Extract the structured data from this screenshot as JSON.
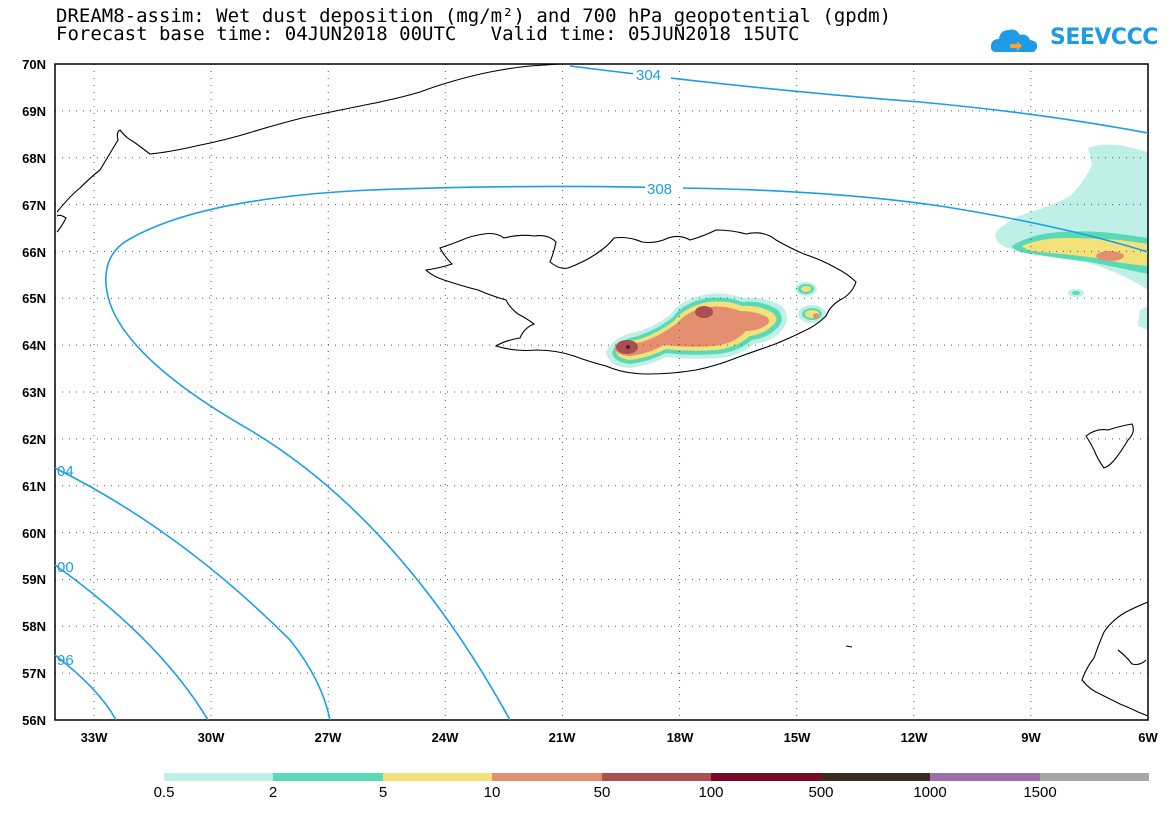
{
  "header": {
    "title_line1": "DREAM8-assim: Wet dust deposition (mg/m²) and 700 hPa geopotential (gpdm)",
    "title_line2": "Forecast base time: 04JUN2018 00UTC   Valid time: 05JUN2018 15UTC",
    "logo_text": "SEEVCCC"
  },
  "map": {
    "lat_labels": [
      "70N",
      "69N",
      "68N",
      "67N",
      "66N",
      "65N",
      "64N",
      "63N",
      "62N",
      "61N",
      "60N",
      "59N",
      "58N",
      "57N",
      "56N"
    ],
    "lon_labels": [
      "33W",
      "30W",
      "27W",
      "24W",
      "21W",
      "18W",
      "15W",
      "12W",
      "9W",
      "6W"
    ],
    "contour_labels": [
      "304",
      "308",
      "04",
      "00",
      "96"
    ],
    "contour_color": "#1a9fe6",
    "coast_color": "#000000",
    "grid": "dotted"
  },
  "colorbar": {
    "labels": [
      "0.5",
      "2",
      "5",
      "10",
      "50",
      "100",
      "500",
      "1000",
      "1500"
    ],
    "colors": [
      "#bff0e8",
      "#5ad9b6",
      "#f3e27a",
      "#e49070",
      "#a95050",
      "#7a0a28",
      "#3c2a1c",
      "#9e6ea6",
      "#a6a6a6"
    ]
  }
}
